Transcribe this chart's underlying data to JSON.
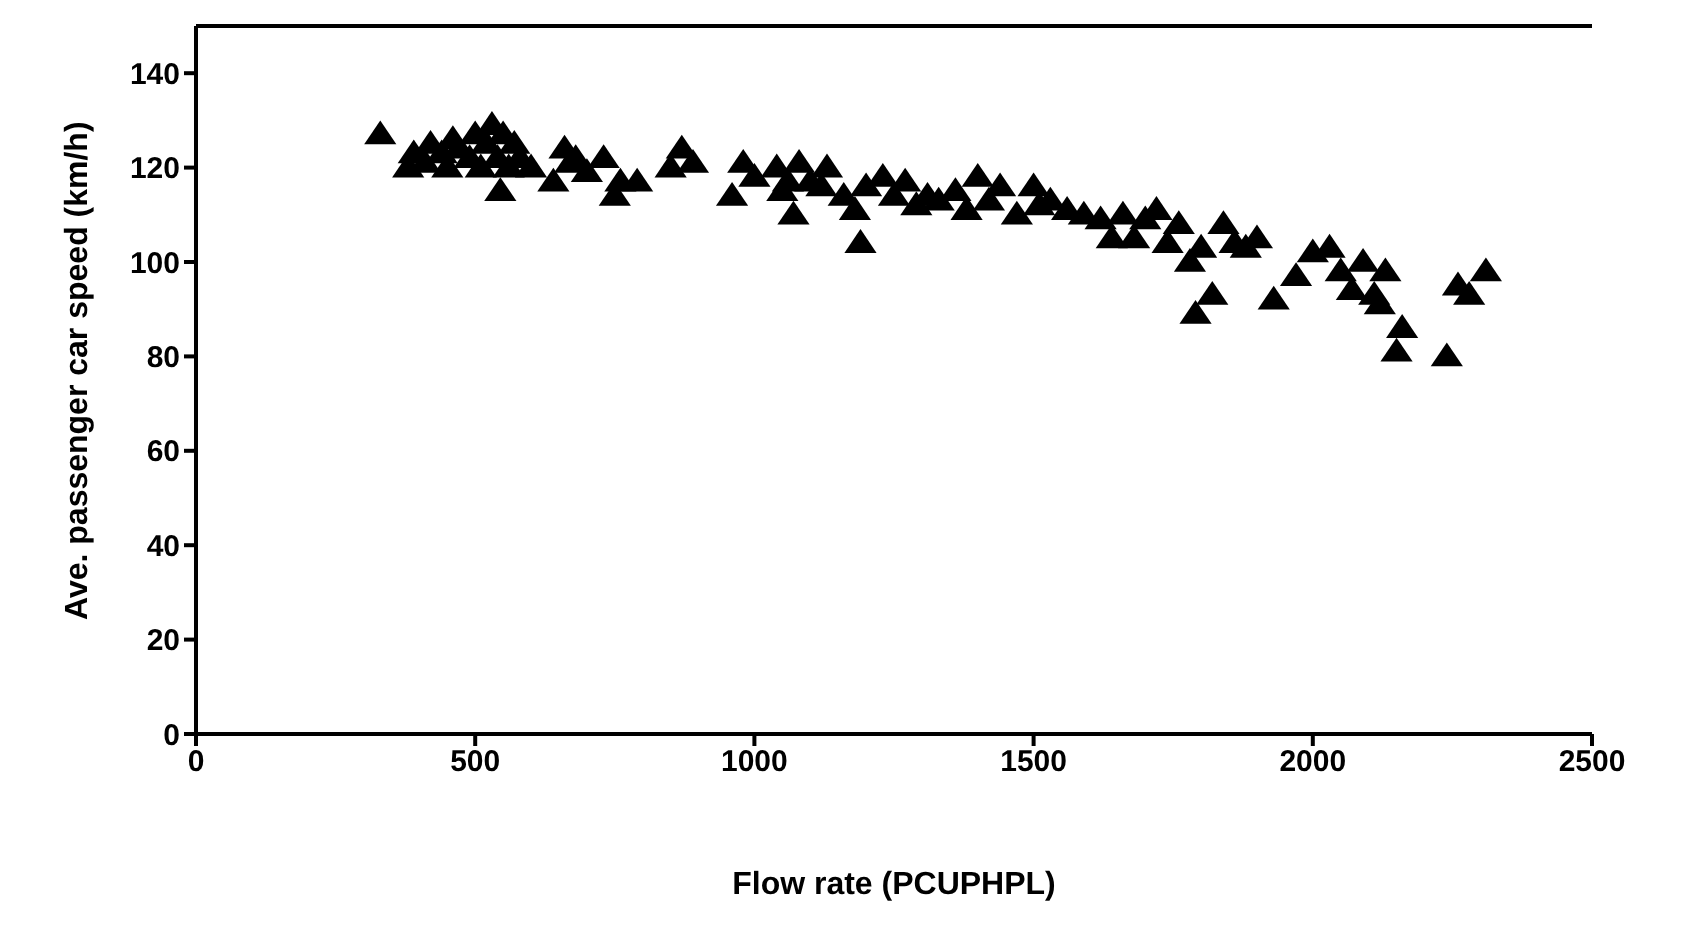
{
  "chart_data": {
    "type": "scatter",
    "xlabel": "Flow rate (PCUPHPL)",
    "ylabel": "Ave. passenger car speed (km/h)",
    "xlim": [
      0,
      2500
    ],
    "xticks": [
      0,
      500,
      1000,
      1500,
      2000,
      2500
    ],
    "ylim": [
      0,
      150
    ],
    "yticks": [
      0,
      20,
      40,
      60,
      80,
      100,
      120,
      140
    ],
    "grid": false,
    "legend": false,
    "marker": "triangle",
    "series": [
      {
        "color": "#000000",
        "x": [
          330,
          380,
          390,
          410,
          420,
          440,
          450,
          460,
          470,
          490,
          500,
          510,
          520,
          530,
          540,
          545,
          550,
          560,
          570,
          580,
          600,
          640,
          660,
          670,
          680,
          700,
          730,
          750,
          760,
          790,
          850,
          870,
          890,
          960,
          980,
          1000,
          1040,
          1050,
          1060,
          1070,
          1080,
          1100,
          1120,
          1130,
          1160,
          1180,
          1190,
          1200,
          1230,
          1250,
          1270,
          1290,
          1310,
          1330,
          1360,
          1380,
          1400,
          1420,
          1440,
          1470,
          1500,
          1510,
          1530,
          1560,
          1590,
          1620,
          1640,
          1660,
          1680,
          1700,
          1720,
          1740,
          1760,
          1780,
          1790,
          1800,
          1820,
          1840,
          1860,
          1880,
          1900,
          1930,
          1970,
          2000,
          2030,
          2050,
          2070,
          2090,
          2110,
          2120,
          2130,
          2150,
          2160,
          2240,
          2260,
          2280,
          2310
        ],
        "values": [
          127,
          120,
          123,
          121,
          125,
          123,
          120,
          126,
          124,
          122,
          127,
          120,
          125,
          129,
          122,
          115,
          127,
          120,
          125,
          122,
          120,
          117,
          124,
          121,
          122,
          119,
          122,
          114,
          117,
          117,
          120,
          124,
          121,
          114,
          121,
          118,
          120,
          115,
          117,
          110,
          121,
          117,
          116,
          120,
          114,
          111,
          104,
          116,
          118,
          114,
          117,
          112,
          114,
          113,
          115,
          111,
          118,
          113,
          116,
          110,
          116,
          112,
          113,
          111,
          110,
          109,
          105,
          110,
          105,
          109,
          111,
          104,
          108,
          100,
          89,
          103,
          93,
          108,
          104,
          103,
          105,
          92,
          97,
          102,
          103,
          98,
          94,
          100,
          93,
          91,
          98,
          81,
          86,
          80,
          95,
          93,
          98
        ]
      }
    ]
  }
}
